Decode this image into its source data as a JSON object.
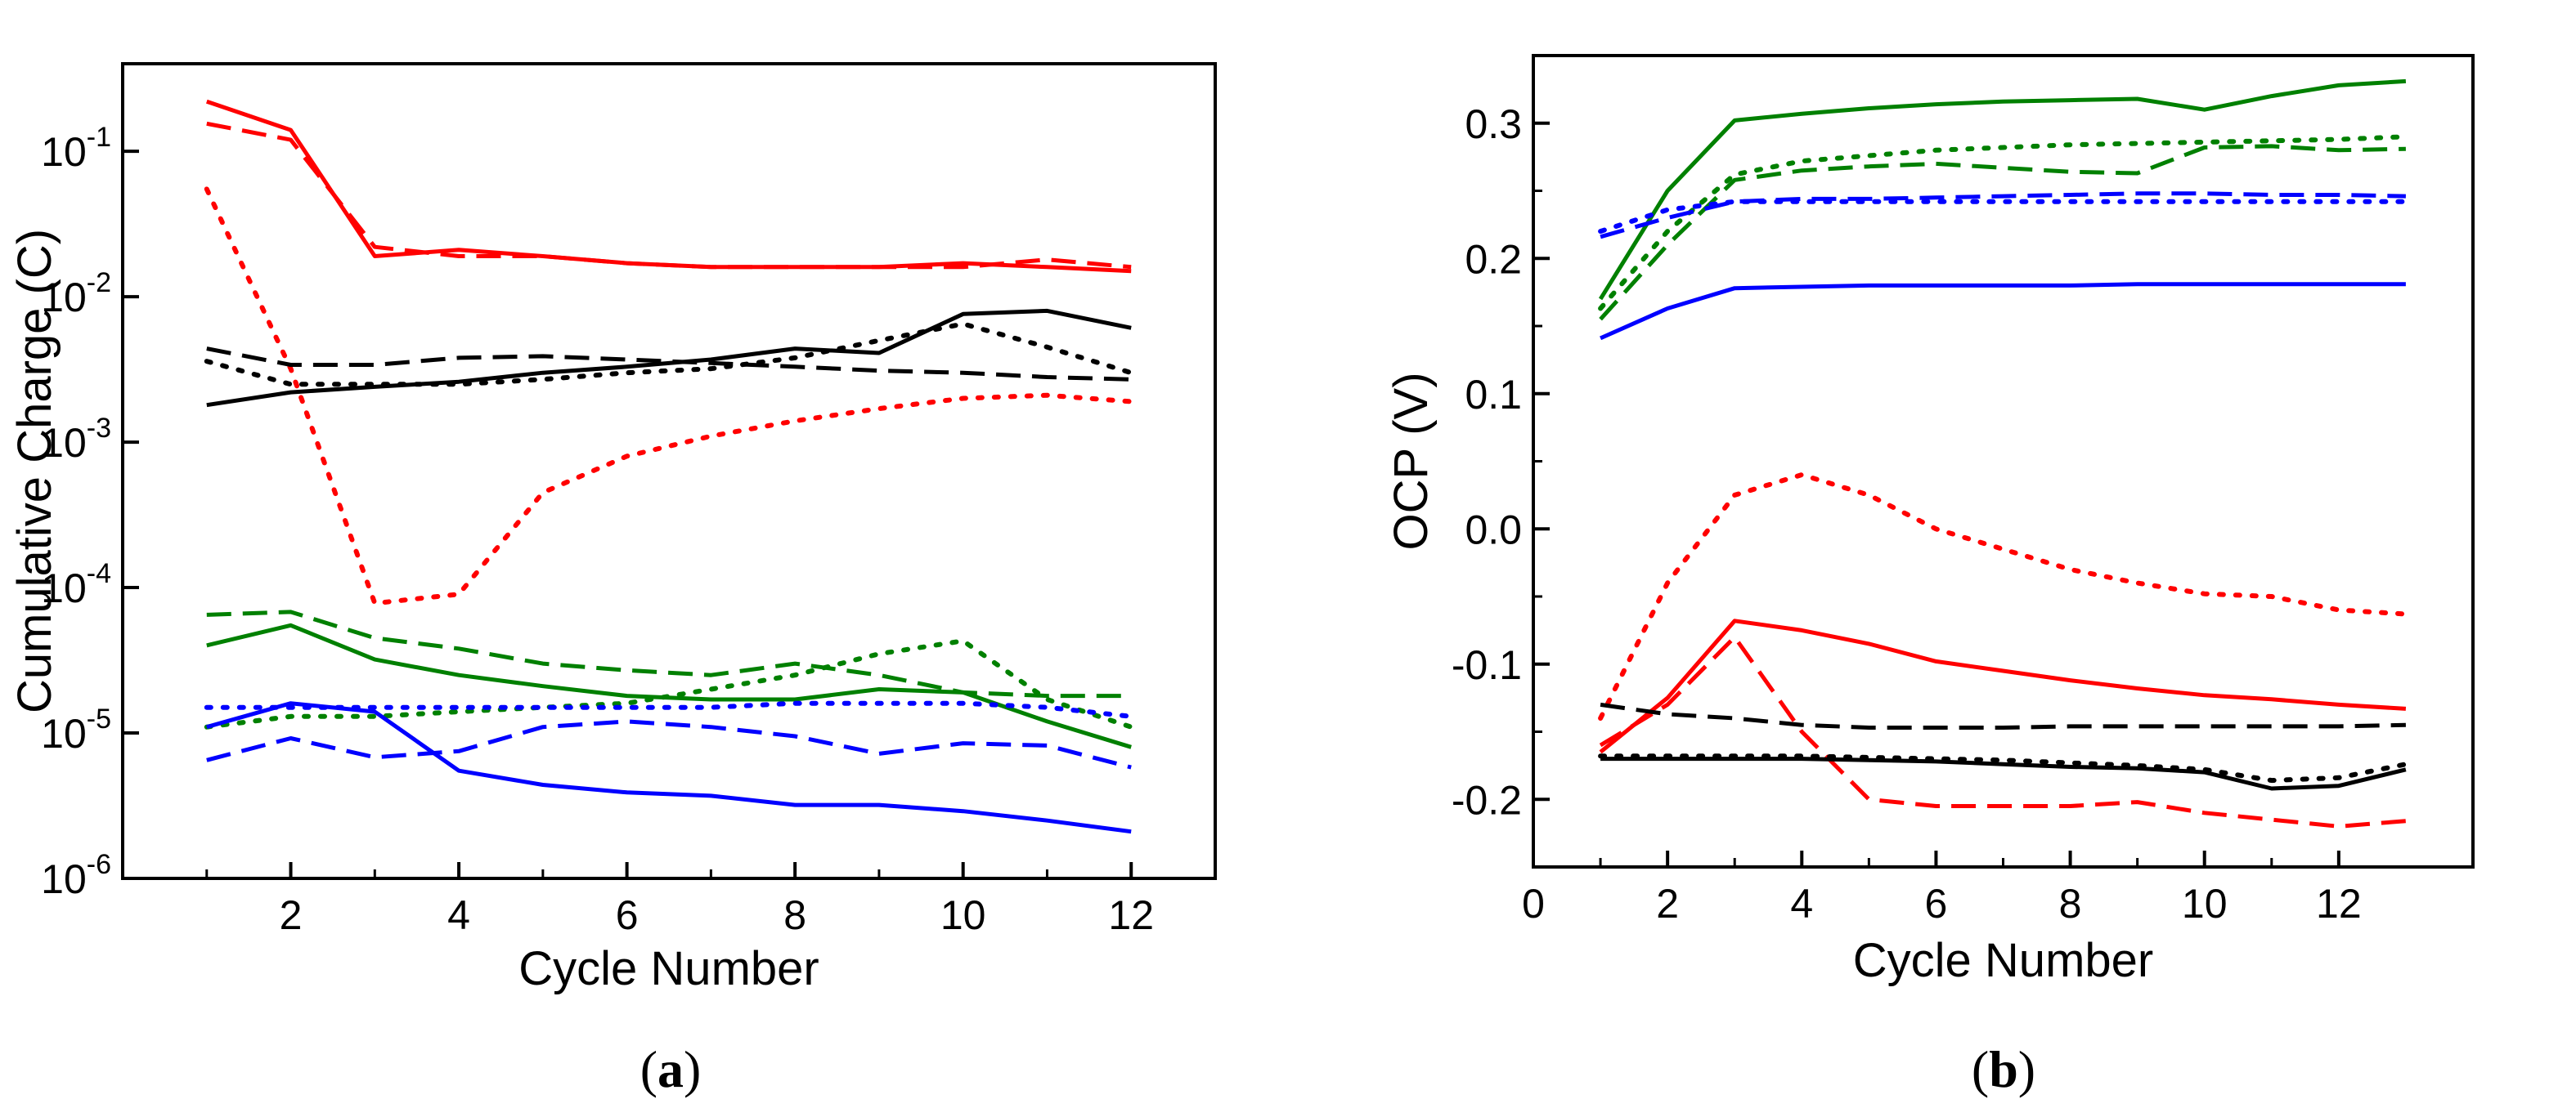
{
  "chart_data": [
    {
      "id": "a",
      "type": "line",
      "panel_label": "a",
      "xlabel": "Cycle Number",
      "ylabel": "Cumulative Charge (C)",
      "yscale": "log",
      "xlim": [
        0,
        13
      ],
      "ylim": [
        1e-06,
        0.4
      ],
      "xticks": [
        2,
        4,
        6,
        8,
        10,
        12
      ],
      "xtick_labels": [
        "2",
        "4",
        "6",
        "8",
        "10",
        "12"
      ],
      "yticks": [
        1e-06,
        1e-05,
        0.0001,
        0.001,
        0.01,
        0.1
      ],
      "ytick_labels": [
        {
          "base": "10",
          "exp": "-6"
        },
        {
          "base": "10",
          "exp": "-5"
        },
        {
          "base": "10",
          "exp": "-4"
        },
        {
          "base": "10",
          "exp": "-3"
        },
        {
          "base": "10",
          "exp": "-2"
        },
        {
          "base": "10",
          "exp": "-1"
        }
      ],
      "series": [
        {
          "name": "red-solid",
          "color": "#ff0000",
          "style": "solid",
          "x": [
            1,
            2,
            3,
            4,
            5,
            6,
            7,
            8,
            9,
            10,
            11,
            12
          ],
          "values": [
            0.22,
            0.14,
            0.019,
            0.021,
            0.019,
            0.017,
            0.016,
            0.016,
            0.016,
            0.017,
            0.016,
            0.015
          ]
        },
        {
          "name": "red-dashed",
          "color": "#ff0000",
          "style": "dashed",
          "x": [
            1,
            2,
            3,
            4,
            5,
            6,
            7,
            8,
            9,
            10,
            11,
            12
          ],
          "values": [
            0.155,
            0.12,
            0.022,
            0.019,
            0.019,
            0.017,
            0.016,
            0.016,
            0.016,
            0.016,
            0.018,
            0.016
          ]
        },
        {
          "name": "red-dotted",
          "color": "#ff0000",
          "style": "dotted",
          "x": [
            1,
            2,
            3,
            4,
            5,
            6,
            7,
            8,
            9,
            10,
            11,
            12
          ],
          "values": [
            0.055,
            0.0032,
            7.8e-05,
            9e-05,
            0.00045,
            0.0008,
            0.0011,
            0.0014,
            0.0017,
            0.002,
            0.0021,
            0.0019
          ]
        },
        {
          "name": "black-solid",
          "color": "#000000",
          "style": "solid",
          "x": [
            1,
            2,
            3,
            4,
            5,
            6,
            7,
            8,
            9,
            10,
            11,
            12
          ],
          "values": [
            0.0018,
            0.0022,
            0.0024,
            0.0026,
            0.003,
            0.0033,
            0.0037,
            0.0044,
            0.0041,
            0.0076,
            0.008,
            0.0061
          ]
        },
        {
          "name": "black-dashed",
          "color": "#000000",
          "style": "dashed",
          "x": [
            1,
            2,
            3,
            4,
            5,
            6,
            7,
            8,
            9,
            10,
            11,
            12
          ],
          "values": [
            0.0044,
            0.0034,
            0.0034,
            0.0038,
            0.0039,
            0.0037,
            0.0035,
            0.0033,
            0.0031,
            0.003,
            0.0028,
            0.0027
          ]
        },
        {
          "name": "black-dotted",
          "color": "#000000",
          "style": "dotted",
          "x": [
            1,
            2,
            3,
            4,
            5,
            6,
            7,
            8,
            9,
            10,
            11,
            12
          ],
          "values": [
            0.0036,
            0.0025,
            0.0025,
            0.0025,
            0.0027,
            0.003,
            0.0032,
            0.0038,
            0.005,
            0.0065,
            0.0045,
            0.003
          ]
        },
        {
          "name": "green-solid",
          "color": "#008000",
          "style": "solid",
          "x": [
            1,
            2,
            3,
            4,
            5,
            6,
            7,
            8,
            9,
            10,
            11,
            12
          ],
          "values": [
            4e-05,
            5.5e-05,
            3.2e-05,
            2.5e-05,
            2.1e-05,
            1.8e-05,
            1.7e-05,
            1.7e-05,
            2e-05,
            1.9e-05,
            1.2e-05,
            8e-06
          ]
        },
        {
          "name": "green-dashed",
          "color": "#008000",
          "style": "dashed",
          "x": [
            1,
            2,
            3,
            4,
            5,
            6,
            7,
            8,
            9,
            10,
            11,
            12
          ],
          "values": [
            6.5e-05,
            6.8e-05,
            4.5e-05,
            3.8e-05,
            3e-05,
            2.7e-05,
            2.5e-05,
            3e-05,
            2.5e-05,
            1.9e-05,
            1.8e-05,
            1.8e-05
          ]
        },
        {
          "name": "green-dotted",
          "color": "#008000",
          "style": "dotted",
          "x": [
            1,
            2,
            3,
            4,
            5,
            6,
            7,
            8,
            9,
            10,
            11,
            12
          ],
          "values": [
            1.1e-05,
            1.3e-05,
            1.3e-05,
            1.4e-05,
            1.5e-05,
            1.6e-05,
            2e-05,
            2.5e-05,
            3.5e-05,
            4.3e-05,
            1.7e-05,
            1.1e-05
          ]
        },
        {
          "name": "blue-solid",
          "color": "#0000ff",
          "style": "solid",
          "x": [
            1,
            2,
            3,
            4,
            5,
            6,
            7,
            8,
            9,
            10,
            11,
            12
          ],
          "values": [
            1.1e-05,
            1.6e-05,
            1.4e-05,
            5.5e-06,
            4.4e-06,
            3.9e-06,
            3.7e-06,
            3.2e-06,
            3.2e-06,
            2.9e-06,
            2.5e-06,
            2.1e-06
          ]
        },
        {
          "name": "blue-dashed",
          "color": "#0000ff",
          "style": "dashed",
          "x": [
            1,
            2,
            3,
            4,
            5,
            6,
            7,
            8,
            9,
            10,
            11,
            12
          ],
          "values": [
            6.5e-06,
            9.2e-06,
            6.8e-06,
            7.5e-06,
            1.1e-05,
            1.2e-05,
            1.1e-05,
            9.5e-06,
            7.2e-06,
            8.5e-06,
            8.2e-06,
            5.8e-06
          ]
        },
        {
          "name": "blue-dotted",
          "color": "#0000ff",
          "style": "dotted",
          "x": [
            1,
            2,
            3,
            4,
            5,
            6,
            7,
            8,
            9,
            10,
            11,
            12
          ],
          "values": [
            1.5e-05,
            1.5e-05,
            1.5e-05,
            1.5e-05,
            1.5e-05,
            1.5e-05,
            1.5e-05,
            1.6e-05,
            1.6e-05,
            1.6e-05,
            1.5e-05,
            1.3e-05
          ]
        }
      ]
    },
    {
      "id": "b",
      "type": "line",
      "panel_label": "b",
      "xlabel": "Cycle Number",
      "ylabel": "OCP (V)",
      "yscale": "linear",
      "xlim": [
        0,
        14
      ],
      "ylim": [
        -0.25,
        0.35
      ],
      "xticks": [
        0,
        2,
        4,
        6,
        8,
        10,
        12
      ],
      "xtick_labels": [
        "0",
        "2",
        "4",
        "6",
        "8",
        "10",
        "12"
      ],
      "yticks": [
        -0.2,
        -0.1,
        0.0,
        0.1,
        0.2,
        0.3
      ],
      "ytick_labels": [
        "-0.2",
        "-0.1",
        "0.0",
        "0.1",
        "0.2",
        "0.3"
      ],
      "series": [
        {
          "name": "green-solid",
          "color": "#008000",
          "style": "solid",
          "x": [
            1,
            2,
            3,
            4,
            5,
            6,
            7,
            8,
            9,
            10,
            11,
            12,
            13
          ],
          "values": [
            0.17,
            0.25,
            0.302,
            0.307,
            0.311,
            0.314,
            0.316,
            0.317,
            0.318,
            0.31,
            0.32,
            0.328,
            0.331
          ]
        },
        {
          "name": "green-dashed",
          "color": "#008000",
          "style": "dashed",
          "x": [
            1,
            2,
            3,
            4,
            5,
            6,
            7,
            8,
            9,
            10,
            11,
            12,
            13
          ],
          "values": [
            0.155,
            0.21,
            0.258,
            0.265,
            0.268,
            0.27,
            0.267,
            0.264,
            0.263,
            0.282,
            0.283,
            0.28,
            0.281
          ]
        },
        {
          "name": "green-dotted",
          "color": "#008000",
          "style": "dotted",
          "x": [
            1,
            2,
            3,
            4,
            5,
            6,
            7,
            8,
            9,
            10,
            11,
            12,
            13
          ],
          "values": [
            0.163,
            0.22,
            0.262,
            0.272,
            0.276,
            0.28,
            0.282,
            0.284,
            0.285,
            0.286,
            0.287,
            0.288,
            0.29
          ]
        },
        {
          "name": "blue-dashed",
          "color": "#0000ff",
          "style": "dashed",
          "x": [
            1,
            2,
            3,
            4,
            5,
            6,
            7,
            8,
            9,
            10,
            11,
            12,
            13
          ],
          "values": [
            0.216,
            0.23,
            0.242,
            0.244,
            0.244,
            0.245,
            0.246,
            0.247,
            0.248,
            0.248,
            0.247,
            0.247,
            0.246
          ]
        },
        {
          "name": "blue-dotted",
          "color": "#0000ff",
          "style": "dotted",
          "x": [
            1,
            2,
            3,
            4,
            5,
            6,
            7,
            8,
            9,
            10,
            11,
            12,
            13
          ],
          "values": [
            0.22,
            0.236,
            0.242,
            0.242,
            0.242,
            0.242,
            0.242,
            0.242,
            0.242,
            0.242,
            0.242,
            0.242,
            0.242
          ]
        },
        {
          "name": "blue-solid",
          "color": "#0000ff",
          "style": "solid",
          "x": [
            1,
            2,
            3,
            4,
            5,
            6,
            7,
            8,
            9,
            10,
            11,
            12,
            13
          ],
          "values": [
            0.141,
            0.163,
            0.178,
            0.179,
            0.18,
            0.18,
            0.18,
            0.18,
            0.181,
            0.181,
            0.181,
            0.181,
            0.181
          ]
        },
        {
          "name": "red-dotted",
          "color": "#ff0000",
          "style": "dotted",
          "x": [
            1,
            2,
            3,
            4,
            5,
            6,
            7,
            8,
            9,
            10,
            11,
            12,
            13
          ],
          "values": [
            -0.14,
            -0.04,
            0.025,
            0.04,
            0.025,
            0.0,
            -0.015,
            -0.03,
            -0.04,
            -0.048,
            -0.05,
            -0.06,
            -0.063
          ]
        },
        {
          "name": "red-solid",
          "color": "#ff0000",
          "style": "solid",
          "x": [
            1,
            2,
            3,
            4,
            5,
            6,
            7,
            8,
            9,
            10,
            11,
            12,
            13
          ],
          "values": [
            -0.165,
            -0.125,
            -0.068,
            -0.075,
            -0.085,
            -0.098,
            -0.105,
            -0.112,
            -0.118,
            -0.123,
            -0.126,
            -0.13,
            -0.133
          ]
        },
        {
          "name": "red-dashed",
          "color": "#ff0000",
          "style": "dashed",
          "x": [
            1,
            2,
            3,
            4,
            5,
            6,
            7,
            8,
            9,
            10,
            11,
            12,
            13
          ],
          "values": [
            -0.16,
            -0.13,
            -0.08,
            -0.15,
            -0.2,
            -0.205,
            -0.205,
            -0.205,
            -0.202,
            -0.21,
            -0.215,
            -0.22,
            -0.216
          ]
        },
        {
          "name": "black-dashed",
          "color": "#000000",
          "style": "dashed",
          "x": [
            1,
            2,
            3,
            4,
            5,
            6,
            7,
            8,
            9,
            10,
            11,
            12,
            13
          ],
          "values": [
            -0.13,
            -0.137,
            -0.14,
            -0.145,
            -0.147,
            -0.147,
            -0.147,
            -0.146,
            -0.146,
            -0.146,
            -0.146,
            -0.146,
            -0.145
          ]
        },
        {
          "name": "black-solid",
          "color": "#000000",
          "style": "solid",
          "x": [
            1,
            2,
            3,
            4,
            5,
            6,
            7,
            8,
            9,
            10,
            11,
            12,
            13
          ],
          "values": [
            -0.17,
            -0.17,
            -0.17,
            -0.17,
            -0.171,
            -0.172,
            -0.174,
            -0.176,
            -0.177,
            -0.18,
            -0.192,
            -0.19,
            -0.178
          ]
        },
        {
          "name": "black-dotted",
          "color": "#000000",
          "style": "dotted",
          "x": [
            1,
            2,
            3,
            4,
            5,
            6,
            7,
            8,
            9,
            10,
            11,
            12,
            13
          ],
          "values": [
            -0.168,
            -0.168,
            -0.168,
            -0.168,
            -0.169,
            -0.17,
            -0.171,
            -0.173,
            -0.175,
            -0.178,
            -0.186,
            -0.184,
            -0.174
          ]
        }
      ]
    }
  ]
}
